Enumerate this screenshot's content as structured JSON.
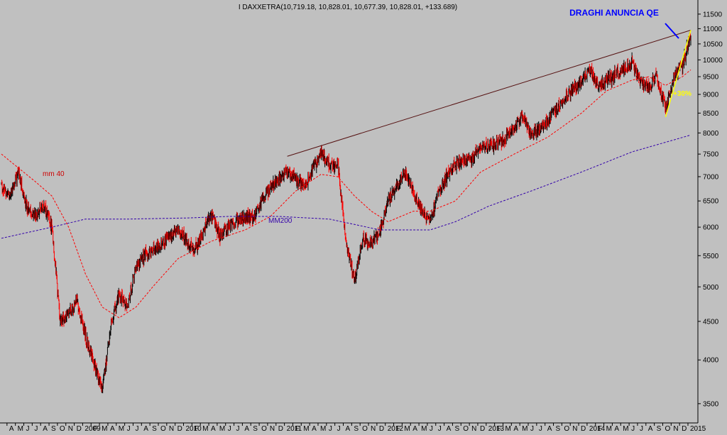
{
  "chart_data": {
    "type": "candlestick",
    "title": "I DAXXETRA(10,719.18, 10,828.01, 10,677.39, 10,828.01, +133.689)",
    "annotation_top": "DRAGHI ANUNCIA QE",
    "annotation_pct": "+30%",
    "ma_labels": {
      "mm40": "mm 40",
      "mm200": "MM200"
    },
    "y_scale": "log",
    "ylim": [
      3300,
      11800
    ],
    "y_ticks": [
      3500,
      4000,
      4500,
      5000,
      5500,
      6000,
      6500,
      7000,
      7500,
      8000,
      8500,
      9000,
      9500,
      10000,
      10500,
      11000,
      11500
    ],
    "x_range": [
      "2008-03",
      "2015-01"
    ],
    "x_tick_labels": [
      "A",
      "M",
      "J",
      "J",
      "A",
      "S",
      "O",
      "N",
      "D",
      "2009",
      "F",
      "M",
      "A",
      "M",
      "J",
      "J",
      "A",
      "S",
      "O",
      "N",
      "D",
      "2010",
      "F",
      "M",
      "A",
      "M",
      "J",
      "J",
      "A",
      "S",
      "O",
      "N",
      "D",
      "2011",
      "F",
      "M",
      "A",
      "M",
      "J",
      "J",
      "A",
      "S",
      "O",
      "N",
      "D",
      "2012",
      "F",
      "M",
      "A",
      "M",
      "J",
      "J",
      "A",
      "S",
      "O",
      "N",
      "D",
      "2013",
      "F",
      "M",
      "A",
      "M",
      "J",
      "J",
      "A",
      "S",
      "O",
      "N",
      "D",
      "2014",
      "F",
      "M",
      "A",
      "M",
      "J",
      "J",
      "A",
      "S",
      "O",
      "N",
      "D",
      "2015"
    ],
    "price_key_points": [
      {
        "date": "2008-03",
        "value": 6800
      },
      {
        "date": "2008-04",
        "value": 6600
      },
      {
        "date": "2008-05",
        "value": 7100
      },
      {
        "date": "2008-06",
        "value": 6400
      },
      {
        "date": "2008-07",
        "value": 6200
      },
      {
        "date": "2008-08",
        "value": 6400
      },
      {
        "date": "2008-09",
        "value": 6000
      },
      {
        "date": "2008-10",
        "value": 4500
      },
      {
        "date": "2008-11",
        "value": 4600
      },
      {
        "date": "2008-12",
        "value": 4800
      },
      {
        "date": "2009-01",
        "value": 4300
      },
      {
        "date": "2009-03",
        "value": 3650
      },
      {
        "date": "2009-04",
        "value": 4450
      },
      {
        "date": "2009-05",
        "value": 4900
      },
      {
        "date": "2009-06",
        "value": 4700
      },
      {
        "date": "2009-07",
        "value": 5300
      },
      {
        "date": "2009-08",
        "value": 5500
      },
      {
        "date": "2009-10",
        "value": 5700
      },
      {
        "date": "2009-12",
        "value": 5950
      },
      {
        "date": "2010-02",
        "value": 5600
      },
      {
        "date": "2010-04",
        "value": 6250
      },
      {
        "date": "2010-05",
        "value": 5850
      },
      {
        "date": "2010-07",
        "value": 6150
      },
      {
        "date": "2010-09",
        "value": 6200
      },
      {
        "date": "2010-11",
        "value": 6800
      },
      {
        "date": "2011-01",
        "value": 7100
      },
      {
        "date": "2011-03",
        "value": 6800
      },
      {
        "date": "2011-05",
        "value": 7550
      },
      {
        "date": "2011-06",
        "value": 7250
      },
      {
        "date": "2011-07",
        "value": 7300
      },
      {
        "date": "2011-08",
        "value": 5700
      },
      {
        "date": "2011-09",
        "value": 5100
      },
      {
        "date": "2011-10",
        "value": 5800
      },
      {
        "date": "2011-11",
        "value": 5700
      },
      {
        "date": "2011-12",
        "value": 5900
      },
      {
        "date": "2012-01",
        "value": 6500
      },
      {
        "date": "2012-03",
        "value": 7100
      },
      {
        "date": "2012-05",
        "value": 6300
      },
      {
        "date": "2012-06",
        "value": 6100
      },
      {
        "date": "2012-07",
        "value": 6700
      },
      {
        "date": "2012-09",
        "value": 7300
      },
      {
        "date": "2012-11",
        "value": 7400
      },
      {
        "date": "2012-12",
        "value": 7650
      },
      {
        "date": "2013-02",
        "value": 7750
      },
      {
        "date": "2013-03",
        "value": 7900
      },
      {
        "date": "2013-05",
        "value": 8400
      },
      {
        "date": "2013-06",
        "value": 7950
      },
      {
        "date": "2013-08",
        "value": 8300
      },
      {
        "date": "2013-10",
        "value": 8900
      },
      {
        "date": "2013-12",
        "value": 9400
      },
      {
        "date": "2014-01",
        "value": 9700
      },
      {
        "date": "2014-02",
        "value": 9200
      },
      {
        "date": "2014-03",
        "value": 9400
      },
      {
        "date": "2014-05",
        "value": 9700
      },
      {
        "date": "2014-06",
        "value": 9900
      },
      {
        "date": "2014-07",
        "value": 9400
      },
      {
        "date": "2014-08",
        "value": 9200
      },
      {
        "date": "2014-09",
        "value": 9500
      },
      {
        "date": "2014-10",
        "value": 8600
      },
      {
        "date": "2014-11",
        "value": 9500
      },
      {
        "date": "2014-12",
        "value": 9800
      },
      {
        "date": "2015-01",
        "value": 10828
      }
    ],
    "ma40_points": [
      {
        "date": "2008-03",
        "value": 7500
      },
      {
        "date": "2008-07",
        "value": 6900
      },
      {
        "date": "2008-09",
        "value": 6600
      },
      {
        "date": "2008-11",
        "value": 6000
      },
      {
        "date": "2009-01",
        "value": 5200
      },
      {
        "date": "2009-03",
        "value": 4700
      },
      {
        "date": "2009-05",
        "value": 4550
      },
      {
        "date": "2009-07",
        "value": 4700
      },
      {
        "date": "2009-09",
        "value": 5000
      },
      {
        "date": "2009-12",
        "value": 5450
      },
      {
        "date": "2010-04",
        "value": 5750
      },
      {
        "date": "2010-08",
        "value": 5950
      },
      {
        "date": "2010-11",
        "value": 6200
      },
      {
        "date": "2011-02",
        "value": 6700
      },
      {
        "date": "2011-05",
        "value": 7050
      },
      {
        "date": "2011-07",
        "value": 7000
      },
      {
        "date": "2011-09",
        "value": 6600
      },
      {
        "date": "2011-11",
        "value": 6300
      },
      {
        "date": "2012-01",
        "value": 6100
      },
      {
        "date": "2012-04",
        "value": 6300
      },
      {
        "date": "2012-06",
        "value": 6300
      },
      {
        "date": "2012-09",
        "value": 6500
      },
      {
        "date": "2012-12",
        "value": 7100
      },
      {
        "date": "2013-04",
        "value": 7500
      },
      {
        "date": "2013-08",
        "value": 7900
      },
      {
        "date": "2013-12",
        "value": 8500
      },
      {
        "date": "2014-03",
        "value": 9100
      },
      {
        "date": "2014-06",
        "value": 9400
      },
      {
        "date": "2014-08",
        "value": 9500
      },
      {
        "date": "2014-10",
        "value": 9250
      },
      {
        "date": "2014-12",
        "value": 9500
      },
      {
        "date": "2015-01",
        "value": 9700
      }
    ],
    "ma200_points": [
      {
        "date": "2008-03",
        "value": 5800
      },
      {
        "date": "2008-09",
        "value": 6000
      },
      {
        "date": "2009-01",
        "value": 6150
      },
      {
        "date": "2009-06",
        "value": 6150
      },
      {
        "date": "2010-01",
        "value": 6170
      },
      {
        "date": "2010-06",
        "value": 6200
      },
      {
        "date": "2010-12",
        "value": 6200
      },
      {
        "date": "2011-06",
        "value": 6150
      },
      {
        "date": "2011-09",
        "value": 6050
      },
      {
        "date": "2011-12",
        "value": 5950
      },
      {
        "date": "2012-06",
        "value": 5950
      },
      {
        "date": "2012-09",
        "value": 6100
      },
      {
        "date": "2013-01",
        "value": 6400
      },
      {
        "date": "2013-06",
        "value": 6700
      },
      {
        "date": "2013-12",
        "value": 7100
      },
      {
        "date": "2014-06",
        "value": 7550
      },
      {
        "date": "2015-01",
        "value": 7950
      }
    ],
    "trendline": [
      {
        "date": "2011-01",
        "value": 7450
      },
      {
        "date": "2015-01",
        "value": 10950
      }
    ],
    "qe_trendline": [
      {
        "date": "2014-10",
        "value": 8400
      },
      {
        "date": "2015-01",
        "value": 10950
      }
    ],
    "colors": {
      "background": "#c0c0c0",
      "up_bar": "#000000",
      "down_bar": "#ff0000",
      "ma40": "#ff0000",
      "ma200": "#3300aa",
      "trendline": "#551111",
      "qe_trendline": "#ffff00",
      "annotation": "#0000ff",
      "pct_annotation": "#ffff00"
    }
  }
}
